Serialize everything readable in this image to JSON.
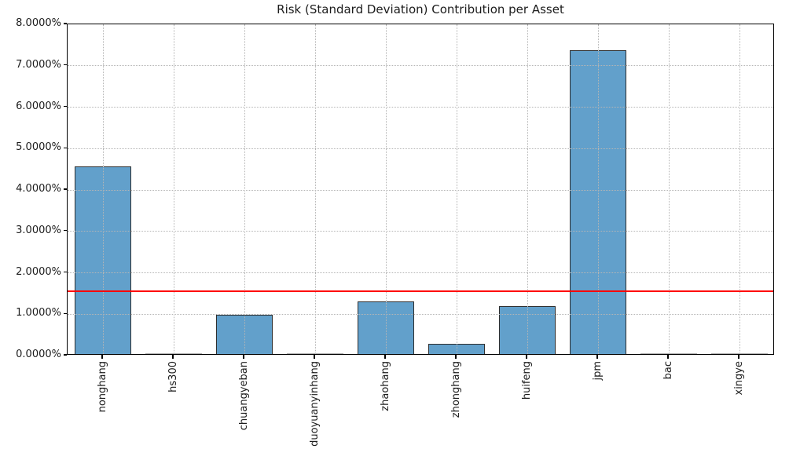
{
  "chart_data": {
    "type": "bar",
    "title": "Risk (Standard Deviation) Contribution per Asset",
    "categories": [
      "nonghang",
      "hs300",
      "chuangyeban",
      "duoyuanyinhang",
      "zhaohang",
      "zhonghang",
      "huifeng",
      "jpm",
      "bac",
      "xingye"
    ],
    "values": [
      4.54,
      0.005,
      0.95,
      0.007,
      1.27,
      0.24,
      1.16,
      7.33,
      0.01,
      0.01
    ],
    "unit": "%",
    "xlabel": "",
    "ylabel": "",
    "ylim": [
      0,
      8
    ],
    "ytick_step": 1,
    "ytick_labels": [
      "0.0000%",
      "1.0000%",
      "2.0000%",
      "3.0000%",
      "4.0000%",
      "5.0000%",
      "6.0000%",
      "7.0000%",
      "8.0000%"
    ],
    "grid": "dotted, both axes, drawn over bars",
    "legend": "none",
    "reference_line": {
      "value": 1.55,
      "color": "#ff0000"
    },
    "colors": {
      "bar_fill": "#62a0cb",
      "bar_edge": "#2e2e2e",
      "tiny_bar": "#adadad",
      "grid": "#b5b5b5",
      "reference": "#ff0000",
      "text": "#1c1c1c"
    }
  }
}
